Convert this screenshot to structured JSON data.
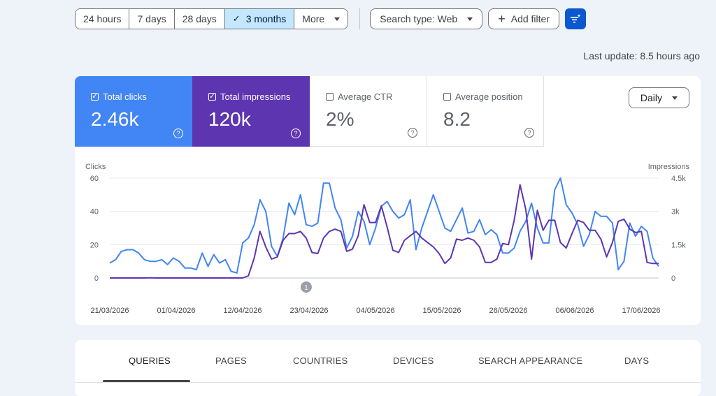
{
  "filters": {
    "ranges": [
      {
        "label": "24 hours",
        "active": false
      },
      {
        "label": "7 days",
        "active": false
      },
      {
        "label": "28 days",
        "active": false
      },
      {
        "label": "3 months",
        "active": true
      },
      {
        "label": "More",
        "active": false
      }
    ],
    "search_type": "Search type: Web",
    "add_filter": "Add filter"
  },
  "last_update": "Last update: 8.5 hours ago",
  "metrics": {
    "clicks": {
      "label": "Total clicks",
      "value": "2.46k",
      "checked": true,
      "help": "?"
    },
    "impressions": {
      "label": "Total impressions",
      "value": "120k",
      "checked": true,
      "help": "?"
    },
    "ctr": {
      "label": "Average CTR",
      "value": "2%",
      "checked": false,
      "help": "?"
    },
    "position": {
      "label": "Average position",
      "value": "8.2",
      "checked": false,
      "help": "?"
    }
  },
  "granularity": "Daily",
  "chart_data": {
    "type": "line",
    "left_axis_label": "Clicks",
    "right_axis_label": "Impressions",
    "left_ticks": [
      "60",
      "40",
      "20",
      "0"
    ],
    "right_ticks": [
      "4.5k",
      "3k",
      "1.5k",
      "0"
    ],
    "left_ylim": [
      0,
      60
    ],
    "right_ylim": [
      0,
      4500
    ],
    "x_tick_labels": [
      "21/03/2026",
      "01/04/2026",
      "12/04/2026",
      "23/04/2026",
      "04/05/2026",
      "15/05/2026",
      "26/05/2026",
      "06/06/2026",
      "17/06/2026"
    ],
    "annotation": "1",
    "series": [
      {
        "name": "Clicks",
        "color": "#4285f4",
        "axis": "left",
        "values": [
          9,
          11,
          16,
          17,
          17,
          15,
          11,
          10,
          10,
          11,
          8,
          12,
          10,
          6,
          6,
          5,
          15,
          7,
          14,
          9,
          11,
          4,
          3,
          21,
          24,
          32,
          47,
          40,
          19,
          13,
          24,
          45,
          38,
          50,
          32,
          31,
          33,
          57,
          57,
          42,
          35,
          18,
          25,
          40,
          34,
          20,
          30,
          43,
          46,
          40,
          36,
          38,
          47,
          17,
          30,
          40,
          50,
          40,
          30,
          28,
          35,
          42,
          27,
          28,
          35,
          26,
          29,
          26,
          15,
          15,
          18,
          28,
          34,
          45,
          30,
          21,
          21,
          53,
          60,
          44,
          39,
          32,
          19,
          26,
          40,
          37,
          37,
          33,
          5,
          10,
          33,
          25,
          31,
          28,
          12,
          7
        ]
      },
      {
        "name": "Impressions",
        "color": "#5e35b1",
        "axis": "right",
        "values": [
          0,
          0,
          0,
          0,
          0,
          0,
          0,
          10,
          0,
          0,
          0,
          0,
          0,
          0,
          0,
          0,
          0,
          0,
          0,
          0,
          0,
          0,
          0,
          0,
          100,
          900,
          2100,
          1400,
          850,
          950,
          1700,
          2000,
          2000,
          2100,
          1800,
          1150,
          1100,
          1800,
          2100,
          2200,
          2100,
          1200,
          1300,
          1900,
          3300,
          2500,
          2500,
          3250,
          2300,
          1250,
          1150,
          1700,
          1900,
          2100,
          1800,
          1600,
          1400,
          1100,
          650,
          900,
          1750,
          1700,
          1800,
          1700,
          1400,
          700,
          700,
          850,
          1550,
          1500,
          2600,
          4200,
          3100,
          850,
          3050,
          2150,
          2600,
          2600,
          1600,
          1350,
          2000,
          2600,
          2500,
          2150,
          2150,
          1750,
          950,
          1600,
          2550,
          2650,
          2200,
          2050,
          2100,
          700,
          650,
          650
        ]
      }
    ]
  },
  "tabs": [
    {
      "label": "QUERIES",
      "active": true
    },
    {
      "label": "PAGES",
      "active": false
    },
    {
      "label": "COUNTRIES",
      "active": false
    },
    {
      "label": "DEVICES",
      "active": false
    },
    {
      "label": "SEARCH APPEARANCE",
      "active": false
    },
    {
      "label": "DAYS",
      "active": false
    }
  ]
}
